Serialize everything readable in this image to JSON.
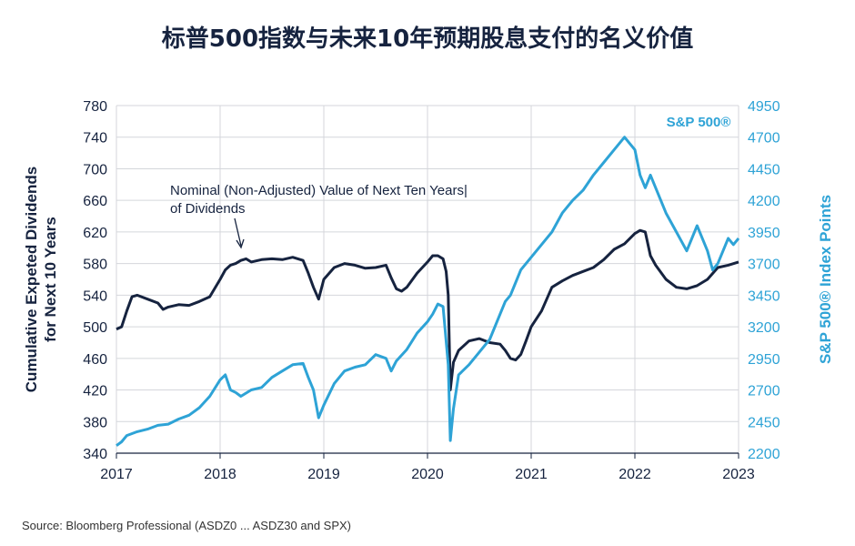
{
  "title": "标普500指数与未来10年预期股息支付的名义价值",
  "source": "Source:  Bloomberg Professional (ASDZ0 ... ASDZ30 and SPX)",
  "chart_data": {
    "type": "line",
    "title": "标普500指数与未来10年预期股息支付的名义价值",
    "ylabel_left": [
      "Cumulative Expeted Dividends",
      "for Next 10 Years"
    ],
    "ylabel_right": "S&P 500® Index Points",
    "x_ticks": [
      "2017",
      "2018",
      "2019",
      "2020",
      "2021",
      "2022",
      "2023"
    ],
    "y_left_ticks": [
      340,
      380,
      420,
      460,
      500,
      540,
      580,
      620,
      660,
      700,
      740,
      780
    ],
    "y_right_ticks": [
      2200,
      2450,
      2700,
      2950,
      3200,
      3450,
      3700,
      3950,
      4200,
      4450,
      4700,
      4950
    ],
    "xlim": [
      2017.0,
      2023.0
    ],
    "ylim_left": [
      340,
      780
    ],
    "ylim_right": [
      2200,
      4950
    ],
    "annotation": [
      "Nominal (Non-Adjusted) Value of Next Ten Years|",
      "of Dividends"
    ],
    "legend_right": "S&P 500®",
    "colors": {
      "dividends": "#16233f",
      "spx": "#2ea3d6"
    },
    "series": [
      {
        "axis": "left",
        "x": [
          2017.0,
          2017.05,
          2017.1,
          2017.15,
          2017.2,
          2017.3,
          2017.4,
          2017.45,
          2017.5,
          2017.6,
          2017.7,
          2017.8,
          2017.9,
          2018.0,
          2018.05,
          2018.1,
          2018.15,
          2018.2,
          2018.25,
          2018.3,
          2018.4,
          2018.5,
          2018.6,
          2018.7,
          2018.8,
          2018.85,
          2018.9,
          2018.95,
          2019.0,
          2019.1,
          2019.2,
          2019.3,
          2019.4,
          2019.5,
          2019.6,
          2019.65,
          2019.7,
          2019.75,
          2019.8,
          2019.9,
          2020.0,
          2020.05,
          2020.1,
          2020.15,
          2020.18,
          2020.2,
          2020.22,
          2020.25,
          2020.3,
          2020.4,
          2020.5,
          2020.6,
          2020.7,
          2020.75,
          2020.8,
          2020.85,
          2020.9,
          2020.95,
          2021.0,
          2021.1,
          2021.2,
          2021.3,
          2021.4,
          2021.5,
          2021.6,
          2021.7,
          2021.8,
          2021.9,
          2022.0,
          2022.05,
          2022.1,
          2022.15,
          2022.2,
          2022.3,
          2022.4,
          2022.5,
          2022.6,
          2022.7,
          2022.8,
          2022.9,
          2023.0
        ],
        "values": [
          497,
          500,
          520,
          538,
          540,
          535,
          530,
          522,
          525,
          528,
          527,
          532,
          538,
          560,
          572,
          578,
          580,
          584,
          586,
          582,
          585,
          586,
          585,
          588,
          584,
          568,
          550,
          535,
          560,
          575,
          580,
          578,
          574,
          575,
          578,
          562,
          548,
          545,
          550,
          568,
          582,
          590,
          590,
          586,
          570,
          540,
          420,
          455,
          470,
          482,
          485,
          480,
          478,
          470,
          460,
          458,
          465,
          482,
          500,
          520,
          550,
          558,
          565,
          570,
          575,
          585,
          598,
          605,
          618,
          622,
          620,
          590,
          578,
          560,
          550,
          548,
          552,
          560,
          575,
          578,
          582
        ]
      },
      {
        "axis": "right",
        "x": [
          2017.0,
          2017.05,
          2017.1,
          2017.2,
          2017.3,
          2017.4,
          2017.5,
          2017.6,
          2017.7,
          2017.8,
          2017.9,
          2018.0,
          2018.05,
          2018.1,
          2018.15,
          2018.2,
          2018.3,
          2018.4,
          2018.5,
          2018.6,
          2018.7,
          2018.8,
          2018.85,
          2018.9,
          2018.95,
          2019.0,
          2019.1,
          2019.2,
          2019.3,
          2019.4,
          2019.5,
          2019.6,
          2019.65,
          2019.7,
          2019.8,
          2019.9,
          2020.0,
          2020.05,
          2020.1,
          2020.15,
          2020.2,
          2020.22,
          2020.25,
          2020.3,
          2020.4,
          2020.5,
          2020.6,
          2020.7,
          2020.75,
          2020.8,
          2020.85,
          2020.9,
          2021.0,
          2021.1,
          2021.2,
          2021.3,
          2021.4,
          2021.5,
          2021.6,
          2021.7,
          2021.8,
          2021.9,
          2021.95,
          2022.0,
          2022.05,
          2022.1,
          2022.15,
          2022.2,
          2022.3,
          2022.4,
          2022.5,
          2022.6,
          2022.7,
          2022.75,
          2022.8,
          2022.9,
          2022.95,
          2023.0
        ],
        "values": [
          2260,
          2290,
          2340,
          2370,
          2390,
          2420,
          2430,
          2470,
          2500,
          2560,
          2650,
          2780,
          2820,
          2700,
          2680,
          2650,
          2700,
          2720,
          2800,
          2850,
          2900,
          2910,
          2800,
          2700,
          2480,
          2580,
          2750,
          2850,
          2880,
          2900,
          2980,
          2950,
          2850,
          2930,
          3020,
          3150,
          3240,
          3300,
          3380,
          3360,
          2900,
          2300,
          2550,
          2820,
          2900,
          3000,
          3100,
          3300,
          3400,
          3450,
          3550,
          3650,
          3750,
          3850,
          3950,
          4100,
          4200,
          4280,
          4400,
          4500,
          4600,
          4700,
          4650,
          4600,
          4400,
          4300,
          4400,
          4300,
          4100,
          3950,
          3800,
          4000,
          3800,
          3650,
          3700,
          3900,
          3850,
          3900
        ]
      }
    ]
  }
}
